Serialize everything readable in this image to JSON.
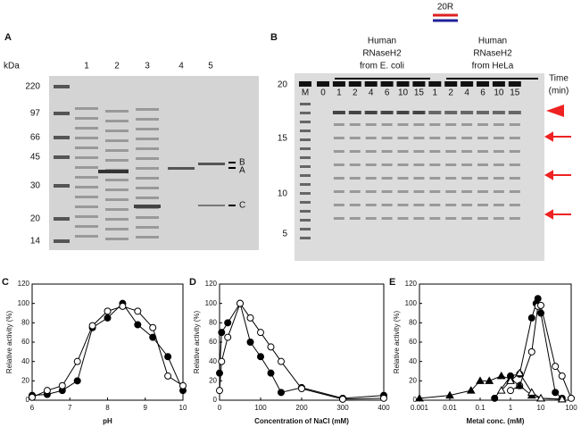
{
  "panel_a": {
    "label": "A",
    "unit": "kDa",
    "markers": [
      "220",
      "97",
      "66",
      "45",
      "30",
      "20",
      "14"
    ],
    "lanes": [
      "1",
      "2",
      "3",
      "4",
      "5"
    ],
    "bands": [
      "B",
      "A",
      "C"
    ]
  },
  "panel_b": {
    "label": "B",
    "substrate": "20R",
    "group1": [
      "Human",
      "RNaseH2",
      "from E. coli"
    ],
    "group2": [
      "Human",
      "RNaseH2",
      "from HeLa"
    ],
    "time": [
      "Time",
      "(min)"
    ],
    "lanes": [
      "M",
      "0",
      "1",
      "2",
      "4",
      "6",
      "10",
      "15",
      "1",
      "2",
      "4",
      "6",
      "10",
      "15"
    ],
    "sizes": [
      "20",
      "15",
      "10",
      "5"
    ]
  },
  "chart_data": [
    {
      "type": "line",
      "label": "C",
      "xlabel": "pH",
      "ylabel": "Relative activity (%)",
      "x": [
        6,
        6.4,
        6.8,
        7.2,
        7.6,
        8,
        8.4,
        8.8,
        9.2,
        9.6,
        10
      ],
      "xlim": [
        6,
        10
      ],
      "xticks": [
        6,
        7,
        8,
        9,
        10
      ],
      "ylim": [
        0,
        120
      ],
      "yticks": [
        0,
        20,
        40,
        60,
        80,
        100,
        120
      ],
      "series": [
        {
          "marker": "circle-filled",
          "color": "#000000",
          "values": [
            5,
            6,
            10,
            20,
            75,
            85,
            100,
            78,
            65,
            45,
            10
          ]
        },
        {
          "marker": "circle-open",
          "color": "#000000",
          "values": [
            3,
            10,
            15,
            40,
            77,
            92,
            97,
            92,
            75,
            25,
            15
          ]
        }
      ]
    },
    {
      "type": "line",
      "label": "D",
      "xlabel": "Concentration of NaCl (mM)",
      "ylabel": "Relative activity (%)",
      "x": [
        0,
        5,
        20,
        50,
        75,
        100,
        125,
        150,
        200,
        300,
        400
      ],
      "xlim": [
        0,
        400
      ],
      "xticks": [
        0,
        100,
        200,
        300,
        400
      ],
      "ylim": [
        0,
        120
      ],
      "yticks": [
        0,
        20,
        40,
        60,
        80,
        100,
        120
      ],
      "series": [
        {
          "marker": "circle-filled",
          "color": "#000000",
          "values": [
            28,
            70,
            80,
            100,
            60,
            45,
            28,
            8,
            13,
            2,
            5
          ]
        },
        {
          "marker": "circle-open",
          "color": "#000000",
          "values": [
            10,
            40,
            65,
            100,
            85,
            70,
            55,
            40,
            12,
            1,
            2
          ]
        }
      ]
    },
    {
      "type": "line",
      "label": "E",
      "xlabel": "Metal conc. (mM)",
      "ylabel": "Relative activity (%)",
      "xscale": "log",
      "xlim": [
        0.001,
        100
      ],
      "xticks": [
        0.001,
        0.01,
        0.1,
        1,
        10,
        100
      ],
      "ylim": [
        0,
        120
      ],
      "yticks": [
        0,
        20,
        40,
        60,
        80,
        100,
        120
      ],
      "series": [
        {
          "marker": "circle-filled",
          "color": "#000000",
          "x": [
            0.3,
            1,
            2,
            5,
            7,
            8,
            10,
            30,
            50
          ],
          "values": [
            2,
            25,
            27,
            85,
            100,
            105,
            90,
            8,
            2
          ]
        },
        {
          "marker": "circle-open",
          "color": "#000000",
          "x": [
            1,
            2,
            5,
            8,
            10,
            30,
            50,
            100
          ],
          "values": [
            10,
            15,
            50,
            97,
            98,
            35,
            25,
            2
          ]
        },
        {
          "marker": "triangle-filled",
          "color": "#000000",
          "x": [
            0.001,
            0.01,
            0.05,
            0.1,
            0.2,
            0.5,
            1,
            2,
            5,
            10,
            50
          ],
          "values": [
            2,
            5,
            10,
            20,
            20,
            25,
            22,
            15,
            5,
            2,
            1
          ]
        },
        {
          "marker": "triangle-open",
          "color": "#000000",
          "x": [
            0.5,
            1,
            2,
            5,
            10,
            50
          ],
          "values": [
            10,
            20,
            28,
            8,
            2,
            1
          ]
        }
      ]
    }
  ]
}
